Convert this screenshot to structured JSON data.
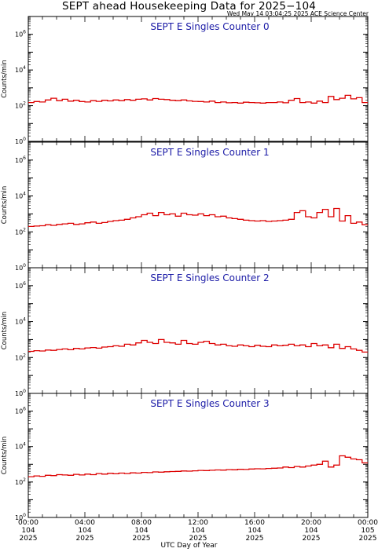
{
  "header": {
    "title": "SEPT ahead Housekeeping Data for 2025−104",
    "timestamp": "Wed May 14 03:04:25 2025 ACE Science Center"
  },
  "x_axis": {
    "label": "UTC Day of Year",
    "ticks": [
      {
        "time": "00:00",
        "day": "104",
        "year": "2025"
      },
      {
        "time": "04:00",
        "day": "104",
        "year": "2025"
      },
      {
        "time": "08:00",
        "day": "104",
        "year": "2025"
      },
      {
        "time": "12:00",
        "day": "104",
        "year": "2025"
      },
      {
        "time": "16:00",
        "day": "104",
        "year": "2025"
      },
      {
        "time": "20:00",
        "day": "104",
        "year": "2025"
      },
      {
        "time": "00:00",
        "day": "105",
        "year": "2025"
      }
    ]
  },
  "colors": {
    "series": "#dd0000",
    "panel_title": "#1a1aa6",
    "axes": "#000000"
  },
  "chart_data": [
    {
      "type": "line",
      "step": true,
      "title": "SEPT E Singles Counter 0",
      "ylabel": "Counts/min",
      "yscale": "log",
      "ylim": [
        1,
        10000000
      ],
      "xlim": [
        0,
        24
      ],
      "xunit": "hours UTC, day 104",
      "ytick_labels": [
        "10^0",
        "10^2",
        "10^4",
        "10^6"
      ],
      "x": [
        0.0,
        0.4,
        0.8,
        1.2,
        1.6,
        2.0,
        2.4,
        2.8,
        3.2,
        3.6,
        4.0,
        4.4,
        4.8,
        5.2,
        5.6,
        6.0,
        6.4,
        6.8,
        7.2,
        7.6,
        8.0,
        8.4,
        8.8,
        9.2,
        9.6,
        10.0,
        10.4,
        10.8,
        11.2,
        11.6,
        12.0,
        12.4,
        12.8,
        13.2,
        13.6,
        14.0,
        14.4,
        14.8,
        15.2,
        15.6,
        16.0,
        16.4,
        16.8,
        17.2,
        17.6,
        18.0,
        18.4,
        18.8,
        19.2,
        19.6,
        20.0,
        20.4,
        20.8,
        21.2,
        21.6,
        22.0,
        22.4,
        22.8,
        23.2,
        23.6
      ],
      "series": [
        {
          "values": [
            150,
            170,
            160,
            210,
            260,
            190,
            230,
            180,
            200,
            170,
            160,
            190,
            175,
            200,
            185,
            210,
            190,
            220,
            200,
            230,
            240,
            210,
            250,
            230,
            220,
            200,
            190,
            210,
            185,
            175,
            170,
            160,
            180,
            150,
            160,
            145,
            150,
            140,
            155,
            150,
            145,
            140,
            150,
            150,
            160,
            145,
            200,
            250,
            150,
            160,
            140,
            180,
            150,
            330,
            220,
            260,
            380,
            240,
            280,
            150
          ]
        }
      ]
    },
    {
      "type": "line",
      "step": true,
      "title": "SEPT E Singles Counter 1",
      "ylabel": "Counts/min",
      "yscale": "log",
      "ylim": [
        1,
        10000000
      ],
      "xlim": [
        0,
        24
      ],
      "xunit": "hours UTC, day 104",
      "ytick_labels": [
        "10^0",
        "10^2",
        "10^4",
        "10^6"
      ],
      "x": [
        0.0,
        0.4,
        0.8,
        1.2,
        1.6,
        2.0,
        2.4,
        2.8,
        3.2,
        3.6,
        4.0,
        4.4,
        4.8,
        5.2,
        5.6,
        6.0,
        6.4,
        6.8,
        7.2,
        7.6,
        8.0,
        8.4,
        8.8,
        9.2,
        9.6,
        10.0,
        10.4,
        10.8,
        11.2,
        11.6,
        12.0,
        12.4,
        12.8,
        13.2,
        13.6,
        14.0,
        14.4,
        14.8,
        15.2,
        15.6,
        16.0,
        16.4,
        16.8,
        17.2,
        17.6,
        18.0,
        18.4,
        18.8,
        19.2,
        19.6,
        20.0,
        20.4,
        20.8,
        21.2,
        21.6,
        22.0,
        22.4,
        22.8,
        23.2,
        23.6
      ],
      "series": [
        {
          "values": [
            200,
            210,
            220,
            250,
            230,
            260,
            280,
            300,
            260,
            280,
            320,
            350,
            300,
            330,
            380,
            420,
            450,
            500,
            600,
            700,
            900,
            1100,
            800,
            1200,
            900,
            1000,
            750,
            1100,
            900,
            850,
            1000,
            800,
            900,
            700,
            750,
            600,
            550,
            500,
            450,
            420,
            400,
            420,
            380,
            400,
            420,
            450,
            500,
            1200,
            1500,
            700,
            600,
            1200,
            1800,
            700,
            2000,
            400,
            800,
            300,
            350,
            250
          ]
        }
      ]
    },
    {
      "type": "line",
      "step": true,
      "title": "SEPT E Singles Counter 2",
      "ylabel": "Counts/min",
      "yscale": "log",
      "ylim": [
        1,
        10000000
      ],
      "xlim": [
        0,
        24
      ],
      "xunit": "hours UTC, day 104",
      "ytick_labels": [
        "10^0",
        "10^2",
        "10^4",
        "10^6"
      ],
      "x": [
        0.0,
        0.4,
        0.8,
        1.2,
        1.6,
        2.0,
        2.4,
        2.8,
        3.2,
        3.6,
        4.0,
        4.4,
        4.8,
        5.2,
        5.6,
        6.0,
        6.4,
        6.8,
        7.2,
        7.6,
        8.0,
        8.4,
        8.8,
        9.2,
        9.6,
        10.0,
        10.4,
        10.8,
        11.2,
        11.6,
        12.0,
        12.4,
        12.8,
        13.2,
        13.6,
        14.0,
        14.4,
        14.8,
        15.2,
        15.6,
        16.0,
        16.4,
        16.8,
        17.2,
        17.6,
        18.0,
        18.4,
        18.8,
        19.2,
        19.6,
        20.0,
        20.4,
        20.8,
        21.2,
        21.6,
        22.0,
        22.4,
        22.8,
        23.2,
        23.6
      ],
      "series": [
        {
          "values": [
            220,
            240,
            230,
            260,
            250,
            280,
            300,
            270,
            320,
            300,
            340,
            360,
            330,
            380,
            400,
            450,
            420,
            550,
            500,
            650,
            900,
            700,
            600,
            1000,
            700,
            650,
            550,
            900,
            600,
            550,
            700,
            800,
            600,
            500,
            550,
            450,
            420,
            500,
            450,
            400,
            480,
            420,
            400,
            500,
            450,
            480,
            550,
            450,
            500,
            400,
            600,
            450,
            500,
            350,
            550,
            320,
            400,
            300,
            250,
            200
          ]
        }
      ]
    },
    {
      "type": "line",
      "step": true,
      "title": "SEPT E Singles Counter 3",
      "ylabel": "Counts/min",
      "yscale": "log",
      "ylim": [
        1,
        10000000
      ],
      "xlim": [
        0,
        24
      ],
      "xunit": "hours UTC, day 104",
      "ytick_labels": [
        "10^0",
        "10^2",
        "10^4",
        "10^6"
      ],
      "x": [
        0.0,
        0.4,
        0.8,
        1.2,
        1.6,
        2.0,
        2.4,
        2.8,
        3.2,
        3.6,
        4.0,
        4.4,
        4.8,
        5.2,
        5.6,
        6.0,
        6.4,
        6.8,
        7.2,
        7.6,
        8.0,
        8.4,
        8.8,
        9.2,
        9.6,
        10.0,
        10.4,
        10.8,
        11.2,
        11.6,
        12.0,
        12.4,
        12.8,
        13.2,
        13.6,
        14.0,
        14.4,
        14.8,
        15.2,
        15.6,
        16.0,
        16.4,
        16.8,
        17.2,
        17.6,
        18.0,
        18.4,
        18.8,
        19.2,
        19.6,
        20.0,
        20.4,
        20.8,
        21.2,
        21.6,
        22.0,
        22.4,
        22.8,
        23.2,
        23.6
      ],
      "series": [
        {
          "values": [
            200,
            220,
            210,
            240,
            230,
            260,
            250,
            240,
            270,
            250,
            280,
            260,
            300,
            280,
            310,
            290,
            320,
            300,
            330,
            320,
            350,
            340,
            370,
            360,
            380,
            390,
            400,
            420,
            410,
            430,
            450,
            440,
            460,
            480,
            470,
            500,
            490,
            520,
            510,
            540,
            560,
            550,
            580,
            600,
            620,
            700,
            650,
            750,
            700,
            800,
            900,
            1000,
            1500,
            700,
            900,
            3000,
            2500,
            2000,
            1800,
            1200
          ]
        }
      ]
    }
  ]
}
